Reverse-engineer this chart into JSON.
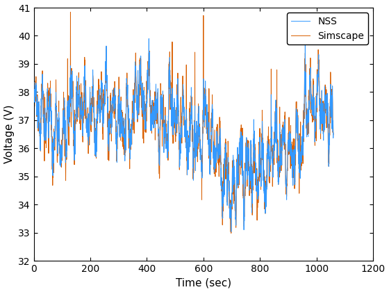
{
  "t_start": 0,
  "t_end": 1060,
  "n_points": 2000,
  "seed": 7,
  "ylim": [
    32,
    41
  ],
  "xlim": [
    0,
    1200
  ],
  "xticks": [
    0,
    200,
    400,
    600,
    800,
    1000,
    1200
  ],
  "yticks": [
    32,
    33,
    34,
    35,
    36,
    37,
    38,
    39,
    40,
    41
  ],
  "xlabel": "Time (sec)",
  "ylabel": "Voltage (V)",
  "nss_color": "#3399FF",
  "simscape_color": "#D95F00",
  "nss_label": "NSS",
  "simscape_label": "Simscape",
  "nss_linewidth": 0.7,
  "simscape_linewidth": 0.7,
  "legend_loc": "upper right",
  "bg_color": "#FFFFFF",
  "figsize": [
    5.6,
    4.2
  ],
  "dpi": 100
}
